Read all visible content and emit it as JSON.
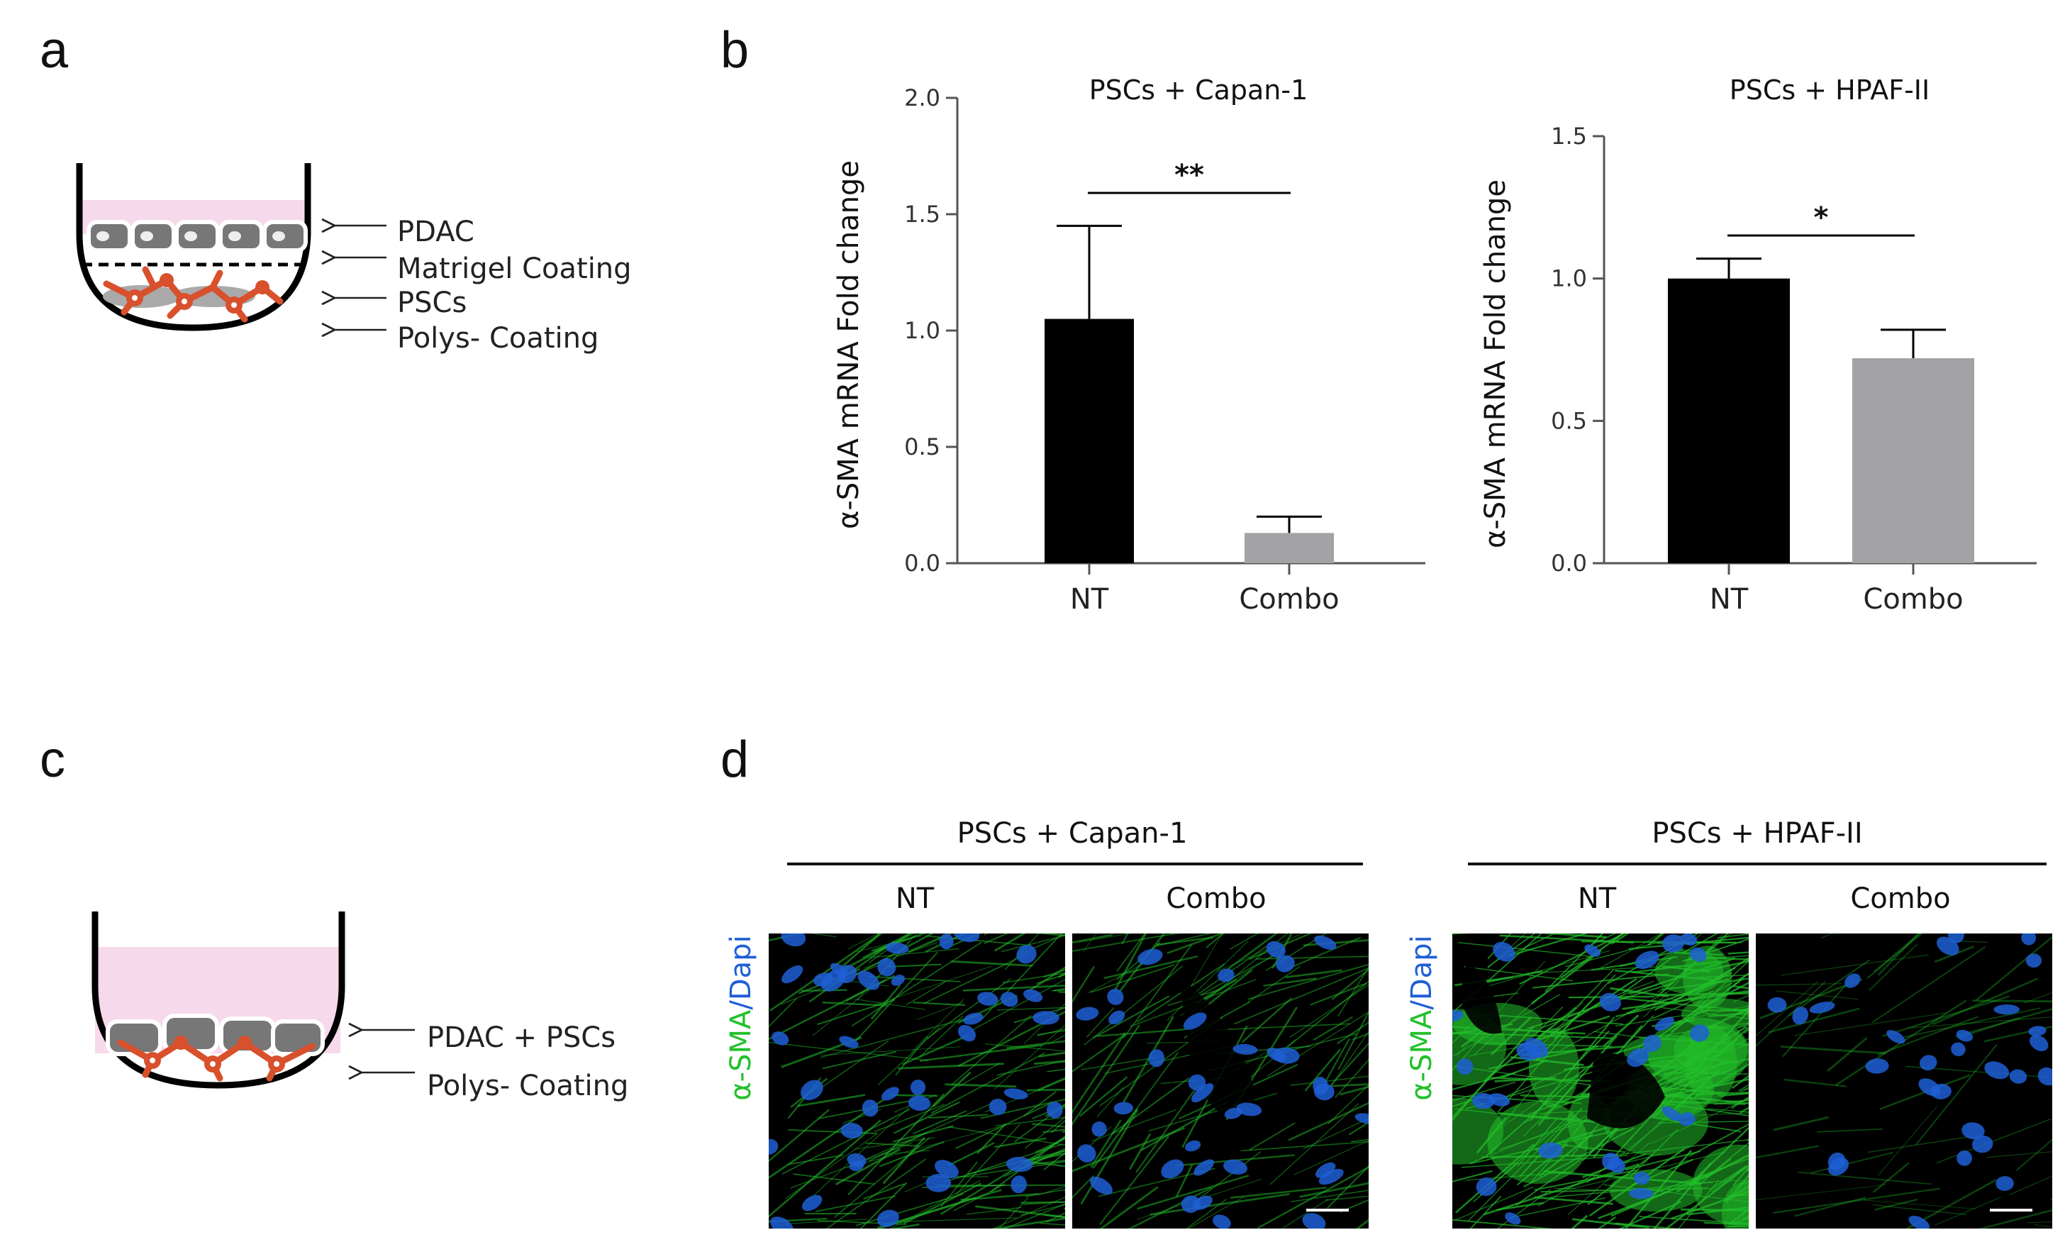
{
  "panels": {
    "a": "a",
    "b": "b",
    "c": "c",
    "d": "d"
  },
  "diagram_a": {
    "labels": [
      "PDAC",
      "Matrigel Coating",
      "PSCs",
      "Polys- Coating"
    ]
  },
  "diagram_c": {
    "labels": [
      "PDAC + PSCs",
      "Polys- Coating"
    ]
  },
  "chart_data": [
    {
      "type": "bar",
      "title": "PSCs + Capan-1",
      "ylabel": "α-SMA  mRNA Fold change",
      "categories": [
        "NT",
        "Combo"
      ],
      "values": [
        1.05,
        0.13
      ],
      "errors": [
        0.4,
        0.07
      ],
      "ylim": [
        0,
        2.0
      ],
      "yticks": [
        "0.0",
        "0.5",
        "1.0",
        "1.5",
        "2.0"
      ],
      "significance": "**",
      "colors": [
        "#000000",
        "#a3a3a6"
      ]
    },
    {
      "type": "bar",
      "title": "PSCs + HPAF-II",
      "ylabel": "α-SMA  mRNA Fold change",
      "categories": [
        "NT",
        "Combo"
      ],
      "values": [
        1.0,
        0.72
      ],
      "errors": [
        0.07,
        0.1
      ],
      "ylim": [
        0,
        1.5
      ],
      "yticks": [
        "0.0",
        "0.5",
        "1.0",
        "1.5"
      ],
      "significance": "*",
      "colors": [
        "#000000",
        "#a3a3a6"
      ]
    }
  ],
  "micrographs": {
    "groups": [
      {
        "title": "PSCs + Capan-1",
        "conditions": [
          "NT",
          "Combo"
        ]
      },
      {
        "title": "PSCs + HPAF-II",
        "conditions": [
          "NT",
          "Combo"
        ]
      }
    ],
    "stain": {
      "marker": "α-SMA",
      "separator": "/",
      "counterstain": "Dapi"
    },
    "colors": {
      "actin": "#22c02a",
      "nuclei": "#1f5fd6"
    }
  }
}
